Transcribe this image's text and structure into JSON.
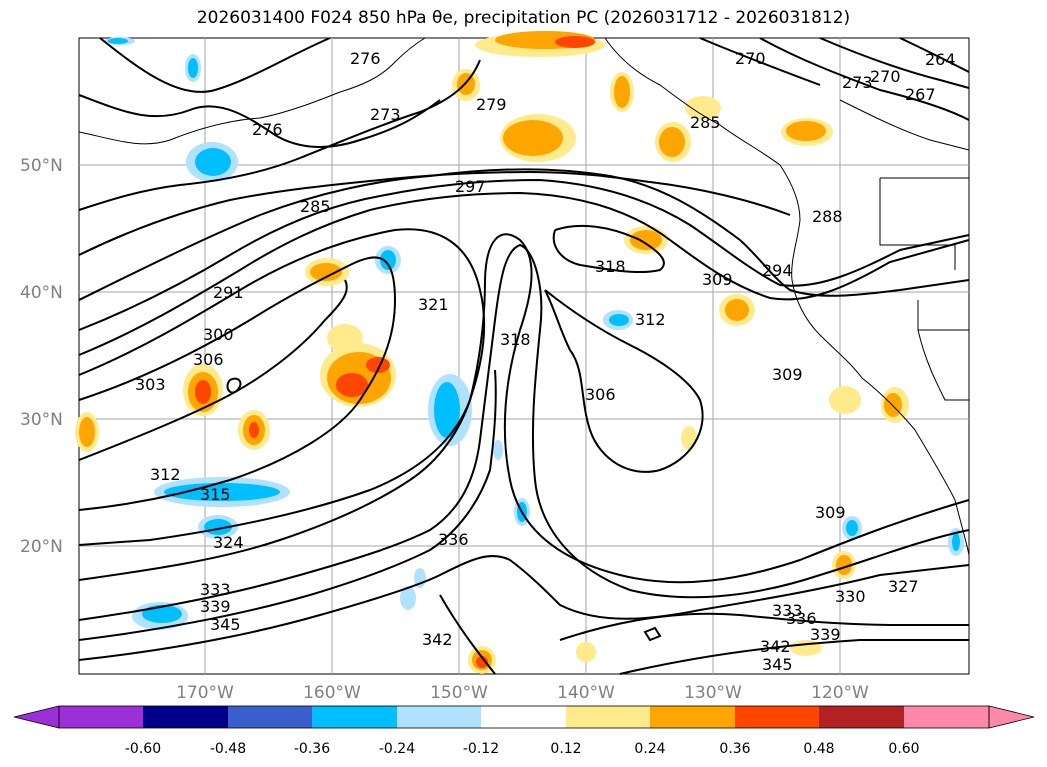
{
  "title": "2026031400 F024 850 hPa θe, precipitation PC (2026031712 - 2026031812)",
  "lat_labels": [
    "50°N",
    "40°N",
    "30°N",
    "20°N"
  ],
  "lon_labels": [
    "170°W",
    "160°W",
    "150°W",
    "140°W",
    "130°W",
    "120°W"
  ],
  "contour_labels": [
    "276",
    "270",
    "273",
    "276",
    "279",
    "264",
    "267",
    "273",
    "270",
    "285",
    "297",
    "288",
    "291",
    "318",
    "309",
    "294",
    "321",
    "312",
    "300",
    "306",
    "303",
    "318",
    "306",
    "309",
    "312",
    "315",
    "324",
    "309",
    "336",
    "333",
    "339",
    "345",
    "342",
    "333",
    "336",
    "330",
    "327",
    "339",
    "342",
    "345",
    "285"
  ],
  "colorbar": {
    "ticks": [
      "-0.60",
      "-0.48",
      "-0.36",
      "-0.24",
      "-0.12",
      "0.12",
      "0.24",
      "0.36",
      "0.48",
      "0.60"
    ],
    "colors": [
      "#9b30d9",
      "#00008b",
      "#3a5fcd",
      "#00bfff",
      "#b0e2ff",
      "#ffffff",
      "#ffea8c",
      "#ffa500",
      "#ff4500",
      "#b22222",
      "#ff88aa",
      "#ff88aa"
    ]
  }
}
